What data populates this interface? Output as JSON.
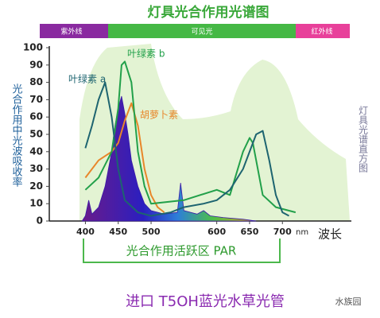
{
  "chart_data": {
    "type": "line",
    "title": "灯具光合作用光谱图",
    "spectrum_bands": [
      "紫外线",
      "可见光",
      "红外线"
    ],
    "ylabel": "光合作用中光波吸收率",
    "xlabel": "波长",
    "x_unit": "nm",
    "par_label": "光合作用活跃区 PAR",
    "caption": "进口 T5OH蓝光水草光管",
    "watermark": "水族园",
    "xlim": [
      345,
      805
    ],
    "xticks": [
      400,
      450,
      500,
      600,
      650,
      700
    ],
    "ylim": [
      0,
      100
    ],
    "yticks": [
      0,
      10,
      20,
      30,
      40,
      50,
      60,
      70,
      80,
      90,
      100
    ],
    "grid": false,
    "series": [
      {
        "name": "灯具光谱直方图",
        "style": "area",
        "color": "#3a1aa8",
        "x": [
          395,
          400,
          405,
          410,
          420,
          430,
          440,
          445,
          450,
          455,
          460,
          465,
          470,
          480,
          490,
          500,
          520,
          540,
          545,
          550,
          570,
          580,
          590,
          610,
          640,
          660
        ],
        "values": [
          0,
          3,
          12,
          4,
          8,
          20,
          40,
          55,
          65,
          72,
          62,
          50,
          35,
          20,
          10,
          6,
          4,
          5,
          22,
          6,
          4,
          6,
          3,
          2,
          1,
          0
        ]
      },
      {
        "name": "胡萝卜素",
        "style": "line",
        "color": "#e8862a",
        "x": [
          400,
          420,
          440,
          450,
          460,
          470,
          480,
          490,
          500,
          510,
          520
        ],
        "values": [
          25,
          35,
          40,
          45,
          58,
          68,
          55,
          30,
          15,
          8,
          5
        ]
      },
      {
        "name": "叶绿素 b",
        "style": "line",
        "color": "#22a04a",
        "x": [
          400,
          420,
          440,
          450,
          455,
          460,
          470,
          480,
          490,
          500,
          550,
          600,
          620,
          640,
          650,
          655,
          670,
          690,
          720
        ],
        "values": [
          18,
          25,
          40,
          65,
          90,
          92,
          80,
          40,
          20,
          10,
          12,
          18,
          15,
          40,
          48,
          45,
          15,
          8,
          5
        ]
      },
      {
        "name": "叶绿素 a",
        "style": "line",
        "color": "#1d6470",
        "x": [
          400,
          410,
          420,
          430,
          440,
          450,
          460,
          480,
          500,
          530,
          550,
          580,
          600,
          620,
          640,
          660,
          670,
          680,
          690,
          700,
          710
        ],
        "values": [
          42,
          55,
          70,
          80,
          60,
          30,
          12,
          5,
          3,
          5,
          8,
          10,
          12,
          18,
          30,
          50,
          52,
          35,
          15,
          5,
          3
        ]
      }
    ]
  }
}
